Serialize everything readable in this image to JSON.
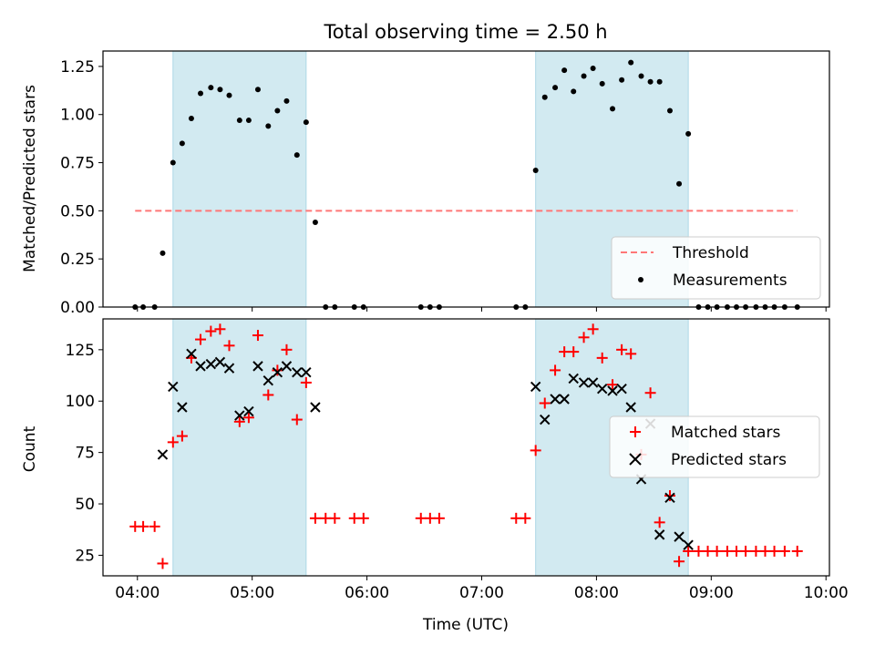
{
  "chart_data": {
    "title": "Total observing time = 2.50 h",
    "xlabel": "Time (UTC)",
    "xticks": [
      "04:00",
      "05:00",
      "06:00",
      "07:00",
      "08:00",
      "09:00",
      "10:00"
    ],
    "xlim": [
      -0.3,
      6.03
    ],
    "shaded_intervals": [
      [
        0.31,
        1.47
      ],
      [
        3.47,
        4.8
      ]
    ],
    "shade_color": "#add8e6",
    "panels": [
      {
        "type": "scatter",
        "ylabel": "Matched/Predicted stars",
        "ylim": [
          0,
          1.33
        ],
        "yticks": [
          "0.00",
          "0.25",
          "0.50",
          "0.75",
          "1.00",
          "1.25"
        ],
        "threshold": {
          "name": "Threshold",
          "value": 0.5,
          "x_range": [
            -0.02,
            5.75
          ],
          "color": "#ff7777"
        },
        "legend": [
          "Threshold",
          "Measurements"
        ],
        "series": [
          {
            "name": "Measurements",
            "color": "#000000",
            "x": [
              -0.02,
              0.05,
              0.15,
              0.22,
              0.31,
              0.39,
              0.47,
              0.55,
              0.64,
              0.72,
              0.8,
              0.89,
              0.97,
              1.05,
              1.14,
              1.22,
              1.3,
              1.39,
              1.47,
              1.55,
              1.64,
              1.72,
              1.89,
              1.97,
              2.47,
              2.55,
              2.63,
              3.3,
              3.38,
              3.47,
              3.55,
              3.64,
              3.72,
              3.8,
              3.89,
              3.97,
              4.05,
              4.14,
              4.22,
              4.3,
              4.39,
              4.47,
              4.55,
              4.64,
              4.72,
              4.8,
              4.89,
              4.97,
              5.05,
              5.14,
              5.22,
              5.3,
              5.39,
              5.47,
              5.55,
              5.64,
              5.75
            ],
            "y": [
              0,
              0,
              0,
              0.28,
              0.75,
              0.85,
              0.98,
              1.11,
              1.14,
              1.13,
              1.1,
              0.97,
              0.97,
              1.13,
              0.94,
              1.02,
              1.07,
              0.79,
              0.96,
              0.44,
              0,
              0,
              0,
              0,
              0,
              0,
              0,
              0,
              0,
              0.71,
              1.09,
              1.14,
              1.23,
              1.12,
              1.2,
              1.24,
              1.16,
              1.03,
              1.18,
              1.27,
              1.2,
              1.17,
              1.17,
              1.02,
              0.64,
              0.9,
              0,
              0,
              0,
              0,
              0,
              0,
              0,
              0,
              0,
              0,
              0
            ]
          }
        ]
      },
      {
        "type": "scatter",
        "ylabel": "Count",
        "ylim": [
          15,
          140
        ],
        "yticks": [
          "25",
          "50",
          "75",
          "100",
          "125"
        ],
        "legend": [
          "Matched stars",
          "Predicted stars"
        ],
        "series": [
          {
            "name": "Matched stars",
            "marker": "plus",
            "color": "#ff0000",
            "x": [
              -0.02,
              0.05,
              0.15,
              0.22,
              0.31,
              0.39,
              0.47,
              0.55,
              0.64,
              0.72,
              0.8,
              0.89,
              0.97,
              1.05,
              1.14,
              1.22,
              1.3,
              1.39,
              1.47,
              1.55,
              1.64,
              1.72,
              1.89,
              1.97,
              2.47,
              2.55,
              2.63,
              3.3,
              3.38,
              3.47,
              3.55,
              3.64,
              3.72,
              3.8,
              3.89,
              3.97,
              4.05,
              4.14,
              4.22,
              4.3,
              4.39,
              4.47,
              4.55,
              4.64,
              4.72,
              4.8,
              4.89,
              4.97,
              5.05,
              5.14,
              5.22,
              5.3,
              5.39,
              5.47,
              5.55,
              5.64,
              5.75
            ],
            "y": [
              39,
              39,
              39,
              21,
              80,
              83,
              121,
              130,
              134,
              135,
              127,
              90,
              92,
              132,
              103,
              115,
              125,
              91,
              109,
              43,
              43,
              43,
              43,
              43,
              43,
              43,
              43,
              43,
              43,
              76,
              99,
              115,
              124,
              124,
              131,
              135,
              121,
              108,
              125,
              123,
              74,
              104,
              41,
              54,
              22,
              27,
              27,
              27,
              27,
              27,
              27,
              27,
              27,
              27,
              27,
              27,
              27
            ]
          },
          {
            "name": "Predicted stars",
            "marker": "x",
            "color": "#000000",
            "x": [
              0.22,
              0.31,
              0.39,
              0.47,
              0.55,
              0.64,
              0.72,
              0.8,
              0.89,
              0.97,
              1.05,
              1.14,
              1.22,
              1.3,
              1.39,
              1.47,
              1.55,
              3.47,
              3.55,
              3.64,
              3.72,
              3.8,
              3.89,
              3.97,
              4.05,
              4.14,
              4.22,
              4.3,
              4.39,
              4.47,
              4.55,
              4.64,
              4.72,
              4.8
            ],
            "y": [
              74,
              107,
              97,
              123,
              117,
              118,
              119,
              116,
              93,
              95,
              117,
              110,
              114,
              117,
              114,
              114,
              97,
              107,
              91,
              101,
              101,
              111,
              109,
              109,
              106,
              105,
              106,
              97,
              62,
              89,
              35,
              53,
              34,
              30
            ]
          }
        ]
      }
    ]
  }
}
